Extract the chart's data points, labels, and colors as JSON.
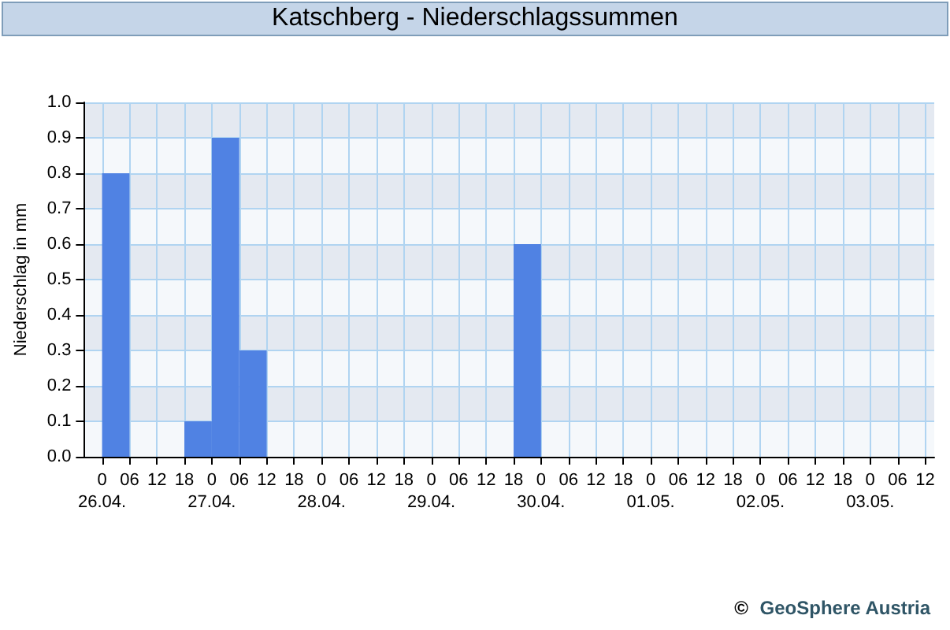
{
  "chart_data": {
    "type": "histogram",
    "title": "Katschberg - Niederschlagssummen",
    "ylabel": "Niederschlag in mm",
    "bins": [
      "--04-26T00:00",
      "--04-26T06:00",
      "--04-26T12:00",
      "--04-26T18:00",
      "--04-27T00:00",
      "--04-27T06:00",
      "--04-27T12:00",
      "--04-27T18:00",
      "--04-28T00:00",
      "--04-28T06:00",
      "--04-28T12:00",
      "--04-28T18:00",
      "--04-29T00:00",
      "--04-29T06:00",
      "--04-29T12:00",
      "--04-29T18:00",
      "--04-30T00:00"
    ],
    "values": [
      0.8,
      0,
      0,
      0.1,
      0.9,
      0.3,
      0,
      0,
      0,
      0,
      0,
      0,
      0,
      0,
      0,
      0.6
    ],
    "color": "#5082e3",
    "xlim": [
      "--04-25T20:00",
      "--05-03T14:00"
    ],
    "xticks": [
      {
        "value": "--04-26T00:00",
        "label": "0\n26.04."
      },
      {
        "value": "--04-26T06:00",
        "label": "06"
      },
      {
        "value": "--04-26T12:00",
        "label": "12"
      },
      {
        "value": "--04-26T18:00",
        "label": "18"
      },
      {
        "value": "--04-27T00:00",
        "label": "0\n27.04."
      },
      {
        "value": "--04-27T06:00",
        "label": "06"
      },
      {
        "value": "--04-27T12:00",
        "label": "12"
      },
      {
        "value": "--04-27T18:00",
        "label": "18"
      },
      {
        "value": "--04-28T00:00",
        "label": "0\n28.04."
      },
      {
        "value": "--04-28T06:00",
        "label": "06"
      },
      {
        "value": "--04-28T12:00",
        "label": "12"
      },
      {
        "value": "--04-28T18:00",
        "label": "18"
      },
      {
        "value": "--04-29T00:00",
        "label": "0\n29.04."
      },
      {
        "value": "--04-29T06:00",
        "label": "06"
      },
      {
        "value": "--04-29T12:00",
        "label": "12"
      },
      {
        "value": "--04-29T18:00",
        "label": "18"
      },
      {
        "value": "--04-30T00:00",
        "label": "0\n30.04."
      },
      {
        "value": "--04-30T06:00",
        "label": "06"
      },
      {
        "value": "--04-30T12:00",
        "label": "12"
      },
      {
        "value": "--04-30T18:00",
        "label": "18"
      },
      {
        "value": "--05-01T00:00",
        "label": "0\n01.05."
      },
      {
        "value": "--05-01T06:00",
        "label": "06"
      },
      {
        "value": "--05-01T12:00",
        "label": "12"
      },
      {
        "value": "--05-01T18:00",
        "label": "18"
      },
      {
        "value": "--05-02T00:00",
        "label": "0\n02.05."
      },
      {
        "value": "--05-02T06:00",
        "label": "06"
      },
      {
        "value": "--05-02T12:00",
        "label": "12"
      },
      {
        "value": "--05-02T18:00",
        "label": "18"
      },
      {
        "value": "--05-03T00:00",
        "label": "0\n03.05."
      },
      {
        "value": "--05-03T06:00",
        "label": "06"
      },
      {
        "value": "--05-03T12:00",
        "label": "12"
      }
    ],
    "ylim": [
      0,
      1
    ],
    "yticks": [
      {
        "value": 0,
        "label": "0.0"
      },
      {
        "value": 0.1,
        "label": "0.1"
      },
      {
        "value": 0.2,
        "label": "0.2"
      },
      {
        "value": 0.3,
        "label": "0.3"
      },
      {
        "value": 0.4,
        "label": "0.4"
      },
      {
        "value": 0.5,
        "label": "0.5"
      },
      {
        "value": 0.6,
        "label": "0.6"
      },
      {
        "value": 0.7,
        "label": "0.7"
      },
      {
        "value": 0.8,
        "label": "0.8"
      },
      {
        "value": 0.9,
        "label": "0.9"
      },
      {
        "value": 1,
        "label": "1.0"
      }
    ],
    "grid": true,
    "annotations": [
      "©",
      "GeoSphere Austria"
    ]
  }
}
